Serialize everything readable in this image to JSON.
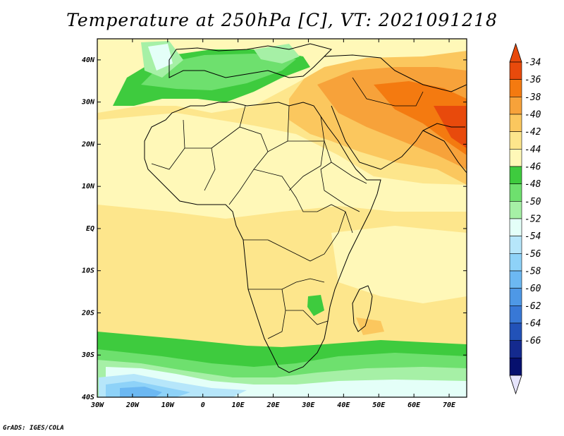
{
  "title": "Temperature at 250hPa [C], VT: 2021091218",
  "credit": "GrADS: IGES/COLA",
  "map": {
    "lon_range": [
      -30,
      75
    ],
    "lat_range": [
      -40,
      45
    ],
    "lat_labels": [
      "40N",
      "30N",
      "20N",
      "10N",
      "EQ",
      "10S",
      "20S",
      "30S",
      "40S"
    ],
    "lat_values": [
      40,
      30,
      20,
      10,
      0,
      -10,
      -20,
      -30,
      -40
    ],
    "lon_labels": [
      "30W",
      "20W",
      "10W",
      "0",
      "10E",
      "20E",
      "30E",
      "40E",
      "50E",
      "60E",
      "70E"
    ],
    "lon_values": [
      -30,
      -20,
      -10,
      0,
      10,
      20,
      30,
      40,
      50,
      60,
      70
    ]
  },
  "colorbar": {
    "labels": [
      "-34",
      "-36",
      "-38",
      "-40",
      "-42",
      "-44",
      "-46",
      "-48",
      "-50",
      "-52",
      "-54",
      "-56",
      "-58",
      "-60",
      "-62",
      "-64",
      "-66"
    ],
    "colors": [
      "#e84a0c",
      "#f47a10",
      "#f7a23a",
      "#fbc75e",
      "#fde68c",
      "#fff8b8",
      "#3ecb3e",
      "#6ee06e",
      "#a6f0a6",
      "#e4fff8",
      "#b6e6fa",
      "#8ed2f8",
      "#6cb8f2",
      "#4e98e6",
      "#3878d6",
      "#2252b8",
      "#142a8e",
      "#06106e"
    ],
    "top_color": "#e84a0c",
    "bottom_color": "#e6e4fc"
  }
}
